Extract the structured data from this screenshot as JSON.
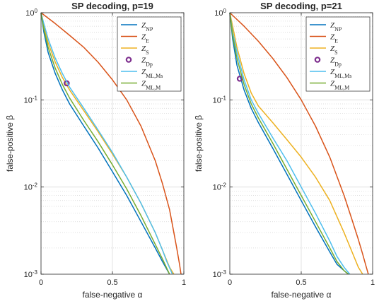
{
  "chart_data": [
    {
      "type": "line",
      "title": "SP decoding, p=19",
      "xlabel": "false-negative α",
      "ylabel": "false-positive β",
      "xlim": [
        0,
        1
      ],
      "ylim": [
        0.001,
        1
      ],
      "yscale": "log",
      "xticks": [
        "0",
        "0.5",
        "1"
      ],
      "yticks": [
        "10^0",
        "10^-1",
        "10^-2",
        "10^-3"
      ],
      "grid": true,
      "legend_position": "top-right",
      "series": [
        {
          "name": "Z_NP",
          "color": "#0072BD",
          "x": [
            0,
            0.02,
            0.05,
            0.1,
            0.15,
            0.2,
            0.3,
            0.4,
            0.5,
            0.6,
            0.7,
            0.8,
            0.85,
            0.9
          ],
          "y": [
            1,
            0.6,
            0.35,
            0.2,
            0.13,
            0.09,
            0.05,
            0.028,
            0.015,
            0.008,
            0.004,
            0.002,
            0.0014,
            0.001
          ]
        },
        {
          "name": "Z_E",
          "color": "#D95319",
          "x": [
            0,
            0.1,
            0.2,
            0.3,
            0.4,
            0.5,
            0.6,
            0.7,
            0.8,
            0.85,
            0.9,
            0.93,
            0.95,
            0.97,
            0.98
          ],
          "y": [
            1,
            0.75,
            0.55,
            0.4,
            0.27,
            0.17,
            0.1,
            0.05,
            0.02,
            0.011,
            0.0055,
            0.003,
            0.002,
            0.0013,
            0.001
          ]
        },
        {
          "name": "Z_S",
          "color": "#EDB120",
          "x": [
            0,
            0.02,
            0.05,
            0.1,
            0.15,
            0.2,
            0.3,
            0.4,
            0.5,
            0.6,
            0.7,
            0.8,
            0.85,
            0.9,
            0.93
          ],
          "y": [
            1,
            0.7,
            0.45,
            0.27,
            0.18,
            0.13,
            0.075,
            0.043,
            0.024,
            0.013,
            0.0065,
            0.003,
            0.0019,
            0.0012,
            0.001
          ]
        },
        {
          "name": "Z_Dp",
          "color": "#7E2F8E",
          "x": [
            0.18
          ],
          "y": [
            0.155
          ]
        },
        {
          "name": "Z_ML,Ms",
          "color": "#4DBEEE",
          "x": [
            0,
            0.02,
            0.05,
            0.1,
            0.15,
            0.2,
            0.3,
            0.4,
            0.5,
            0.6,
            0.7,
            0.8,
            0.85,
            0.88,
            0.92
          ],
          "y": [
            1,
            0.75,
            0.5,
            0.3,
            0.2,
            0.14,
            0.08,
            0.045,
            0.025,
            0.013,
            0.0065,
            0.003,
            0.0019,
            0.0014,
            0.001
          ]
        },
        {
          "name": "Z_ML,M",
          "color": "#77AC30",
          "x": [
            0,
            0.02,
            0.05,
            0.1,
            0.15,
            0.2,
            0.3,
            0.4,
            0.5,
            0.6,
            0.7,
            0.8,
            0.85,
            0.9
          ],
          "y": [
            1,
            0.65,
            0.4,
            0.23,
            0.15,
            0.105,
            0.058,
            0.033,
            0.018,
            0.0095,
            0.0047,
            0.0022,
            0.0015,
            0.001
          ]
        }
      ]
    },
    {
      "type": "line",
      "title": "SP decoding, p=21",
      "xlabel": "false-negative α",
      "ylabel": "false-positive β",
      "xlim": [
        0,
        1
      ],
      "ylim": [
        0.001,
        1
      ],
      "yscale": "log",
      "xticks": [
        "0",
        "0.5",
        "1"
      ],
      "yticks": [
        "10^0",
        "10^-1",
        "10^-2",
        "10^-3"
      ],
      "grid": true,
      "legend_position": "top-right",
      "series": [
        {
          "name": "Z_NP",
          "color": "#0072BD",
          "x": [
            0,
            0.02,
            0.05,
            0.1,
            0.15,
            0.2,
            0.3,
            0.4,
            0.5,
            0.6,
            0.7,
            0.75,
            0.8,
            0.83
          ],
          "y": [
            1,
            0.5,
            0.25,
            0.13,
            0.08,
            0.055,
            0.028,
            0.014,
            0.007,
            0.0035,
            0.0018,
            0.0013,
            0.0011,
            0.001
          ]
        },
        {
          "name": "Z_E",
          "color": "#D95319",
          "x": [
            0,
            0.1,
            0.2,
            0.3,
            0.4,
            0.5,
            0.6,
            0.7,
            0.8,
            0.85,
            0.9,
            0.93,
            0.95,
            0.97
          ],
          "y": [
            1,
            0.7,
            0.47,
            0.3,
            0.18,
            0.1,
            0.05,
            0.022,
            0.008,
            0.0045,
            0.0025,
            0.0017,
            0.0013,
            0.001
          ]
        },
        {
          "name": "Z_S",
          "color": "#EDB120",
          "x": [
            0,
            0.02,
            0.05,
            0.1,
            0.15,
            0.2,
            0.3,
            0.4,
            0.5,
            0.6,
            0.7,
            0.8,
            0.85,
            0.9,
            0.93
          ],
          "y": [
            1,
            0.7,
            0.4,
            0.2,
            0.12,
            0.085,
            0.055,
            0.035,
            0.022,
            0.013,
            0.007,
            0.003,
            0.0019,
            0.0012,
            0.001
          ]
        },
        {
          "name": "Z_Dp",
          "color": "#7E2F8E",
          "x": [
            0.07
          ],
          "y": [
            0.175
          ]
        },
        {
          "name": "Z_ML,Ms",
          "color": "#4DBEEE",
          "x": [
            0,
            0.02,
            0.05,
            0.1,
            0.15,
            0.2,
            0.3,
            0.4,
            0.5,
            0.6,
            0.7,
            0.75,
            0.8,
            0.84
          ],
          "y": [
            1,
            0.6,
            0.35,
            0.17,
            0.1,
            0.07,
            0.037,
            0.02,
            0.01,
            0.005,
            0.0024,
            0.0016,
            0.0012,
            0.001
          ]
        },
        {
          "name": "Z_ML,M",
          "color": "#77AC30",
          "x": [
            0,
            0.02,
            0.05,
            0.1,
            0.15,
            0.2,
            0.3,
            0.4,
            0.5,
            0.6,
            0.7,
            0.75,
            0.8,
            0.83
          ],
          "y": [
            1,
            0.55,
            0.3,
            0.15,
            0.09,
            0.062,
            0.032,
            0.016,
            0.008,
            0.004,
            0.002,
            0.0014,
            0.0011,
            0.001
          ]
        }
      ]
    }
  ]
}
